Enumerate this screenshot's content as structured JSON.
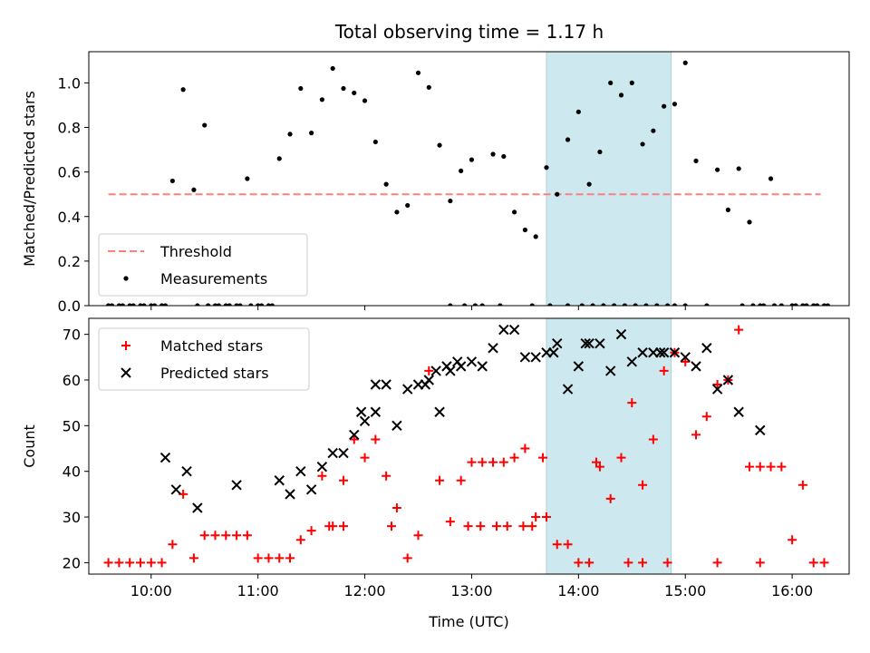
{
  "chart_data": [
    {
      "type": "scatter",
      "title": "Total observing time = 1.17 h",
      "ylabel": "Matched/Predicted stars",
      "xlabel": "",
      "xlim": [
        "09:25",
        "16:32"
      ],
      "ylim": [
        0,
        1.14
      ],
      "yticks": [
        0.0,
        0.2,
        0.4,
        0.6,
        0.8,
        1.0
      ],
      "ytick_labels": [
        "0.0",
        "0.2",
        "0.4",
        "0.6",
        "0.8",
        "1.0"
      ],
      "legend_position": "lower-left",
      "highlight_span": [
        "13:42",
        "14:52"
      ],
      "highlight_color": "#cde8ef",
      "series": [
        {
          "name": "Threshold",
          "kind": "dashed-line",
          "color": "#ff7f7f",
          "x": [
            "09:36",
            "16:16"
          ],
          "y": [
            0.5,
            0.5
          ]
        },
        {
          "name": "Measurements",
          "kind": "dot",
          "color": "#000000",
          "x": [
            "09:36",
            "09:42",
            "09:48",
            "09:54",
            "10:00",
            "10:06",
            "10:12",
            "10:18",
            "10:24",
            "10:30",
            "10:36",
            "10:42",
            "10:48",
            "10:54",
            "11:00",
            "11:06",
            "11:12",
            "11:18",
            "11:24",
            "11:30",
            "11:36",
            "11:42",
            "11:48",
            "11:54",
            "12:00",
            "12:06",
            "12:12",
            "12:18",
            "12:24",
            "12:30",
            "12:36",
            "12:42",
            "12:48",
            "12:54",
            "13:00",
            "13:06",
            "13:12",
            "13:18",
            "13:24",
            "13:30",
            "13:36",
            "13:42",
            "13:48",
            "13:54",
            "14:00",
            "14:06",
            "14:12",
            "14:18",
            "14:24",
            "14:30",
            "14:36",
            "14:42",
            "14:48",
            "14:54",
            "15:00",
            "15:06",
            "15:12",
            "15:18",
            "15:24",
            "15:30",
            "15:36",
            "15:42",
            "15:48",
            "15:54",
            "16:00",
            "16:06",
            "16:12",
            "16:18",
            "13:54",
            "14:02",
            "14:08",
            "14:14",
            "14:20",
            "14:26",
            "14:32",
            "14:38",
            "14:44",
            "14:50",
            "09:38",
            "09:44",
            "09:50",
            "09:56",
            "10:02",
            "10:08",
            "10:26",
            "10:32",
            "10:38",
            "10:44",
            "10:50",
            "10:56",
            "11:02",
            "11:08",
            "12:48",
            "12:56",
            "13:02",
            "13:16",
            "13:34",
            "13:44",
            "14:54",
            "15:00",
            "15:32",
            "15:38",
            "15:44",
            "15:50",
            "16:02",
            "16:08",
            "16:14",
            "16:20"
          ],
          "y": [
            0,
            0,
            0,
            0,
            0,
            0,
            0.56,
            0.97,
            0.52,
            0.81,
            0,
            0,
            0,
            0.57,
            0,
            0,
            0.66,
            0.77,
            0.975,
            0.775,
            0.925,
            1.065,
            0.975,
            0.955,
            0.92,
            0.735,
            0.545,
            0.42,
            0.45,
            1.045,
            0.98,
            0.72,
            0.47,
            0.605,
            0.655,
            0,
            0.68,
            0.67,
            0.42,
            0.34,
            0.31,
            0.62,
            0.5,
            0.745,
            0.87,
            0.545,
            0.69,
            1.0,
            0.945,
            1.0,
            0.725,
            0.785,
            0.895,
            0.905,
            1.09,
            0.65,
            0,
            0.61,
            0.43,
            0.615,
            0.375,
            0,
            0.57,
            0,
            0,
            0,
            0,
            0,
            0,
            0,
            0,
            0,
            0,
            0,
            0,
            0,
            0,
            0,
            0,
            0,
            0,
            0,
            0,
            0,
            0,
            0,
            0,
            0,
            0,
            0,
            0,
            0,
            0,
            0,
            0,
            0,
            0,
            0,
            0,
            0,
            0,
            0,
            0,
            0,
            0,
            0,
            0,
            0
          ]
        }
      ]
    },
    {
      "type": "scatter",
      "title": "",
      "ylabel": "Count",
      "xlabel": "Time (UTC)",
      "xlim": [
        "09:25",
        "16:32"
      ],
      "ylim": [
        17.5,
        73.5
      ],
      "yticks": [
        20,
        30,
        40,
        50,
        60,
        70
      ],
      "ytick_labels": [
        "20",
        "30",
        "40",
        "50",
        "60",
        "70"
      ],
      "xticks": [
        "10:00",
        "11:00",
        "12:00",
        "13:00",
        "14:00",
        "15:00",
        "16:00"
      ],
      "xtick_labels": [
        "10:00",
        "11:00",
        "12:00",
        "13:00",
        "14:00",
        "15:00",
        "16:00"
      ],
      "legend_position": "upper-left",
      "highlight_span": [
        "13:42",
        "14:52"
      ],
      "highlight_color": "#cde8ef",
      "series": [
        {
          "name": "Matched stars",
          "kind": "plus",
          "color": "#ff0000",
          "x": [
            "09:36",
            "09:42",
            "09:48",
            "09:54",
            "10:00",
            "10:06",
            "10:12",
            "10:18",
            "10:24",
            "10:30",
            "10:36",
            "10:42",
            "10:48",
            "10:54",
            "11:00",
            "11:06",
            "11:12",
            "11:18",
            "11:24",
            "11:30",
            "11:36",
            "11:42",
            "11:48",
            "11:54",
            "12:00",
            "12:06",
            "12:12",
            "12:18",
            "12:24",
            "12:30",
            "12:36",
            "12:42",
            "12:48",
            "12:54",
            "13:00",
            "13:06",
            "13:12",
            "13:18",
            "13:24",
            "13:30",
            "13:36",
            "13:42",
            "13:48",
            "13:54",
            "14:00",
            "14:06",
            "14:12",
            "14:18",
            "14:24",
            "14:30",
            "14:36",
            "14:42",
            "14:48",
            "14:54",
            "15:00",
            "15:06",
            "15:12",
            "15:18",
            "15:24",
            "15:30",
            "15:36",
            "15:42",
            "15:48",
            "15:54",
            "16:00",
            "16:06",
            "16:12",
            "16:18",
            "11:40",
            "11:48",
            "12:15",
            "12:58",
            "13:05",
            "13:14",
            "13:20",
            "13:29",
            "13:34",
            "13:40",
            "14:10",
            "14:28",
            "14:36",
            "14:50",
            "15:18",
            "15:42"
          ],
          "y": [
            20,
            20,
            20,
            20,
            20,
            20,
            24,
            35,
            21,
            26,
            26,
            26,
            26,
            26,
            21,
            21,
            21,
            21,
            25,
            27,
            39,
            28,
            38,
            47,
            43,
            47,
            39,
            32,
            21,
            26,
            62,
            38,
            29,
            38,
            42,
            42,
            42,
            42,
            43,
            45,
            30,
            30,
            24,
            24,
            20,
            20,
            41,
            34,
            43,
            55,
            37,
            47,
            62,
            66,
            64,
            48,
            52,
            59,
            60,
            71,
            41,
            41,
            41,
            41,
            25,
            37,
            20,
            20,
            28,
            28,
            28,
            28,
            28,
            28,
            28,
            28,
            28,
            43,
            42,
            20,
            20,
            20,
            20,
            20
          ]
        },
        {
          "name": "Predicted stars",
          "kind": "x",
          "color": "#000000",
          "x": [
            "10:08",
            "10:14",
            "10:20",
            "10:26",
            "10:48",
            "11:12",
            "11:18",
            "11:24",
            "11:30",
            "11:36",
            "11:42",
            "11:48",
            "11:54",
            "12:00",
            "12:06",
            "12:12",
            "12:18",
            "12:24",
            "12:30",
            "12:36",
            "12:42",
            "12:48",
            "12:54",
            "13:00",
            "13:06",
            "13:12",
            "13:18",
            "13:24",
            "13:30",
            "13:42",
            "13:48",
            "13:54",
            "14:00",
            "14:06",
            "14:12",
            "14:18",
            "14:24",
            "14:30",
            "14:36",
            "14:42",
            "14:48",
            "14:54",
            "15:00",
            "15:06",
            "15:12",
            "15:18",
            "15:24",
            "15:30",
            "15:42",
            "11:58",
            "12:06",
            "12:34",
            "12:40",
            "12:46",
            "12:52",
            "13:36",
            "13:46",
            "14:04",
            "14:46"
          ],
          "y": [
            43,
            36,
            40,
            32,
            37,
            38,
            35,
            40,
            36,
            41,
            44,
            44,
            48,
            51,
            53,
            59,
            50,
            58,
            59,
            60,
            53,
            62,
            63,
            64,
            63,
            67,
            71,
            71,
            65,
            66,
            68,
            58,
            63,
            68,
            68,
            62,
            70,
            64,
            66,
            66,
            66,
            66,
            65,
            63,
            67,
            58,
            60,
            53,
            49,
            53,
            59,
            59,
            62,
            63,
            64,
            65,
            66,
            68,
            66
          ]
        }
      ]
    }
  ]
}
